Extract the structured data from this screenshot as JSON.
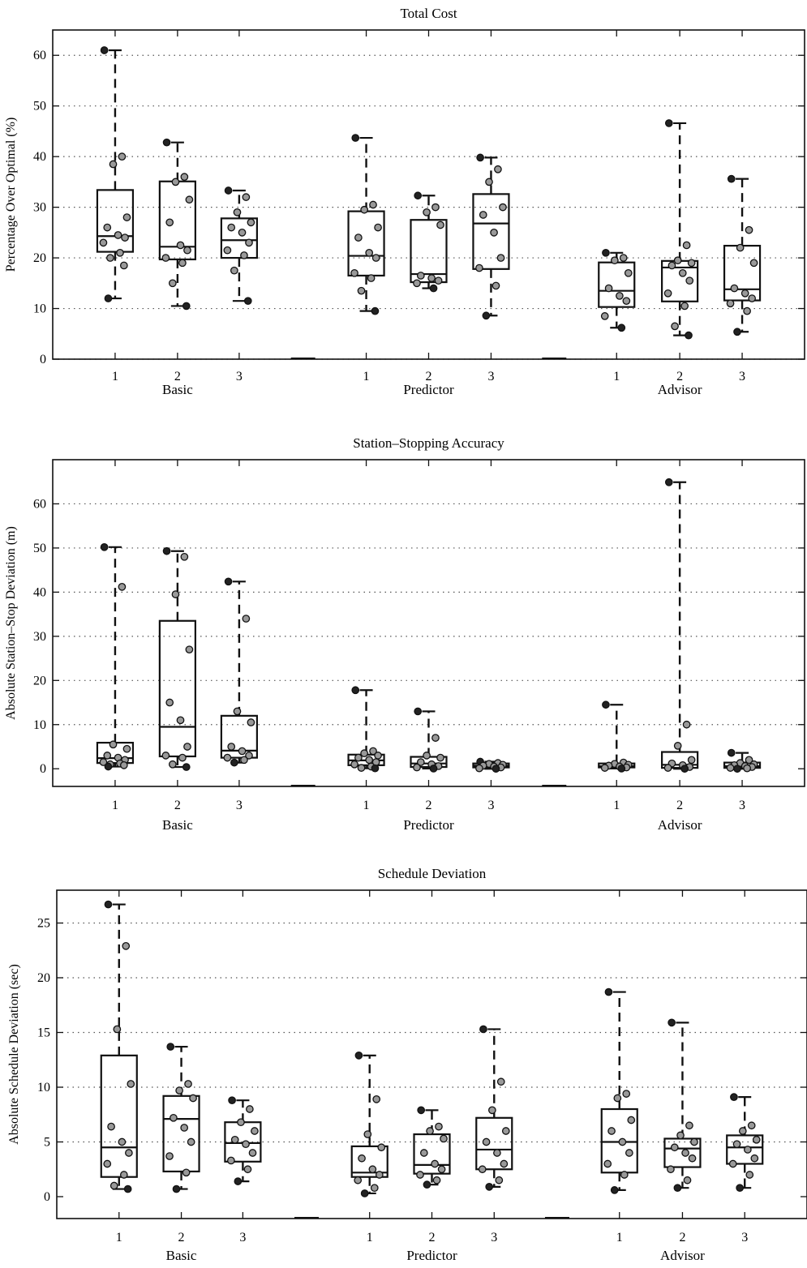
{
  "charts": [
    {
      "type": "box",
      "title": "Total Cost",
      "ylabel": "Percentage Over Optimal (%)",
      "ylim": [
        0,
        65
      ],
      "yticks": [
        0,
        10,
        20,
        30,
        40,
        50,
        60
      ],
      "grid": "horizontal-dotted",
      "groups": [
        {
          "name": "Basic",
          "conditions": [
            {
              "label": "1",
              "whisker_low": 12,
              "q1": 21.2,
              "median": 24.3,
              "q3": 33.4,
              "whisker_high": 61,
              "points": [
                61,
                40,
                38.5,
                28,
                26,
                24.5,
                24,
                23,
                21,
                20,
                18.5,
                12
              ]
            },
            {
              "label": "2",
              "whisker_low": 10.5,
              "q1": 19.7,
              "median": 22.2,
              "q3": 35.1,
              "whisker_high": 42.8,
              "points": [
                42.8,
                36,
                35,
                31.5,
                27,
                22.5,
                21.5,
                20,
                19,
                15,
                10.5
              ]
            },
            {
              "label": "3",
              "whisker_low": 11.5,
              "q1": 20.0,
              "median": 23.5,
              "q3": 27.8,
              "whisker_high": 33.3,
              "points": [
                33.3,
                32,
                29,
                27,
                26,
                25,
                23,
                21.5,
                20.5,
                17.5,
                11.5
              ]
            }
          ]
        },
        {
          "name": "Predictor",
          "conditions": [
            {
              "label": "1",
              "whisker_low": 9.5,
              "q1": 16.5,
              "median": 20.4,
              "q3": 29.2,
              "whisker_high": 43.7,
              "points": [
                43.7,
                30.5,
                29.5,
                26,
                24,
                21,
                20,
                17,
                16,
                13.5,
                9.5
              ]
            },
            {
              "label": "2",
              "whisker_low": 14,
              "q1": 15.2,
              "median": 16.8,
              "q3": 27.5,
              "whisker_high": 32.3,
              "points": [
                32.3,
                30,
                29,
                26.5,
                16.5,
                16,
                15.5,
                15,
                14
              ]
            },
            {
              "label": "3",
              "whisker_low": 8.6,
              "q1": 17.8,
              "median": 26.8,
              "q3": 32.6,
              "whisker_high": 39.8,
              "points": [
                39.8,
                37.5,
                35,
                30,
                28.5,
                25,
                20,
                18,
                14.5,
                8.6
              ]
            }
          ]
        },
        {
          "name": "Advisor",
          "conditions": [
            {
              "label": "1",
              "whisker_low": 6.2,
              "q1": 10.3,
              "median": 13.5,
              "q3": 19.1,
              "whisker_high": 21,
              "points": [
                21,
                20,
                19.5,
                17,
                14,
                12.5,
                11.5,
                8.5,
                6.2
              ]
            },
            {
              "label": "2",
              "whisker_low": 4.7,
              "q1": 11.4,
              "median": 18.1,
              "q3": 19.4,
              "whisker_high": 46.6,
              "points": [
                46.6,
                22.5,
                19.5,
                19,
                18.5,
                17,
                15.5,
                13,
                10.5,
                6.5,
                4.7
              ]
            },
            {
              "label": "3",
              "whisker_low": 5.4,
              "q1": 11.6,
              "median": 13.8,
              "q3": 22.4,
              "whisker_high": 35.6,
              "points": [
                35.6,
                25.5,
                22,
                19,
                14,
                13,
                12,
                11,
                9.5,
                5.4
              ]
            }
          ]
        }
      ]
    },
    {
      "type": "box",
      "title": "Station–Stopping Accuracy",
      "ylabel": "Absolute Station–Stop Deviation (m)",
      "ylim": [
        -4,
        70
      ],
      "yticks": [
        0,
        10,
        20,
        30,
        40,
        50,
        60
      ],
      "grid": "horizontal-dotted",
      "groups": [
        {
          "name": "Basic",
          "conditions": [
            {
              "label": "1",
              "whisker_low": 0.5,
              "q1": 1.3,
              "median": 2.4,
              "q3": 5.9,
              "whisker_high": 50.2,
              "points": [
                50.2,
                41.2,
                5.5,
                4.5,
                3,
                2.5,
                2,
                1.5,
                1.2,
                1,
                0.8,
                0.5
              ]
            },
            {
              "label": "2",
              "whisker_low": 0.4,
              "q1": 2.8,
              "median": 9.5,
              "q3": 33.5,
              "whisker_high": 49.3,
              "points": [
                49.3,
                48,
                39.5,
                27,
                15,
                11,
                5,
                3,
                2.5,
                1,
                0.4
              ]
            },
            {
              "label": "3",
              "whisker_low": 1.4,
              "q1": 2.5,
              "median": 4.1,
              "q3": 12,
              "whisker_high": 42.4,
              "points": [
                42.4,
                34,
                13,
                10.5,
                5,
                4,
                3,
                2.5,
                2,
                1.4
              ]
            }
          ]
        },
        {
          "name": "Predictor",
          "conditions": [
            {
              "label": "1",
              "whisker_low": 0.1,
              "q1": 0.8,
              "median": 1.9,
              "q3": 3.2,
              "whisker_high": 17.8,
              "points": [
                17.8,
                4,
                3.5,
                3,
                2.5,
                2,
                1.5,
                1,
                0.5,
                0.2,
                0.1
              ]
            },
            {
              "label": "2",
              "whisker_low": 0.05,
              "q1": 0.4,
              "median": 1.2,
              "q3": 2.7,
              "whisker_high": 13,
              "points": [
                13,
                7,
                3,
                2.5,
                1.5,
                1,
                0.6,
                0.3,
                0.05
              ]
            },
            {
              "label": "3",
              "whisker_low": 0.0,
              "q1": 0.3,
              "median": 0.7,
              "q3": 1.2,
              "whisker_high": 1.6,
              "points": [
                1.6,
                1.3,
                1.1,
                0.9,
                0.7,
                0.5,
                0.3,
                0.1,
                0.0
              ]
            }
          ]
        },
        {
          "name": "Advisor",
          "conditions": [
            {
              "label": "1",
              "whisker_low": 0.05,
              "q1": 0.3,
              "median": 0.6,
              "q3": 1.2,
              "whisker_high": 14.5,
              "points": [
                14.5,
                1.4,
                1.1,
                0.9,
                0.7,
                0.5,
                0.3,
                0.2,
                0.05
              ]
            },
            {
              "label": "2",
              "whisker_low": 0.0,
              "q1": 0.2,
              "median": 0.9,
              "q3": 3.8,
              "whisker_high": 64.9,
              "points": [
                64.9,
                10,
                5.2,
                2,
                1.2,
                0.8,
                0.4,
                0.2,
                0.0
              ]
            },
            {
              "label": "3",
              "whisker_low": 0.0,
              "q1": 0.2,
              "median": 0.6,
              "q3": 1.4,
              "whisker_high": 3.6,
              "points": [
                3.6,
                2,
                1.3,
                1,
                0.8,
                0.6,
                0.4,
                0.2,
                0.1,
                0.0
              ]
            }
          ]
        }
      ]
    },
    {
      "type": "box",
      "title": "Schedule Deviation",
      "ylabel": "Absolute Schedule Deviation (sec)",
      "ylim": [
        -2,
        28
      ],
      "yticks": [
        0,
        5,
        10,
        15,
        20,
        25
      ],
      "grid": "horizontal-dotted",
      "groups": [
        {
          "name": "Basic",
          "conditions": [
            {
              "label": "1",
              "whisker_low": 0.7,
              "q1": 1.8,
              "median": 4.5,
              "q3": 12.9,
              "whisker_high": 26.7,
              "points": [
                26.7,
                22.9,
                15.3,
                10.3,
                6.4,
                5,
                4,
                3,
                2,
                1,
                0.7
              ]
            },
            {
              "label": "2",
              "whisker_low": 0.7,
              "q1": 2.3,
              "median": 7.1,
              "q3": 9.2,
              "whisker_high": 13.7,
              "points": [
                13.7,
                10.3,
                9.7,
                9,
                7.2,
                6.3,
                5,
                3.7,
                2.2,
                0.7
              ]
            },
            {
              "label": "3",
              "whisker_low": 1.4,
              "q1": 3.2,
              "median": 4.9,
              "q3": 6.8,
              "whisker_high": 8.8,
              "points": [
                8.8,
                8,
                6.8,
                6,
                5.2,
                4.8,
                4,
                3.3,
                2.5,
                1.4
              ]
            }
          ]
        },
        {
          "name": "Predictor",
          "conditions": [
            {
              "label": "1",
              "whisker_low": 0.3,
              "q1": 1.8,
              "median": 2.2,
              "q3": 4.6,
              "whisker_high": 12.9,
              "points": [
                12.9,
                8.9,
                5.7,
                4.5,
                3.5,
                2.5,
                2,
                1.5,
                0.8,
                0.3
              ]
            },
            {
              "label": "2",
              "whisker_low": 1.1,
              "q1": 2.1,
              "median": 2.9,
              "q3": 5.7,
              "whisker_high": 7.9,
              "points": [
                7.9,
                6.4,
                6,
                5.3,
                4,
                3,
                2.5,
                2,
                1.5,
                1.1
              ]
            },
            {
              "label": "3",
              "whisker_low": 0.9,
              "q1": 2.5,
              "median": 4.3,
              "q3": 7.2,
              "whisker_high": 15.3,
              "points": [
                15.3,
                10.5,
                7.9,
                6,
                5,
                4,
                3,
                2.5,
                1.5,
                0.9
              ]
            }
          ]
        },
        {
          "name": "Advisor",
          "conditions": [
            {
              "label": "1",
              "whisker_low": 0.6,
              "q1": 2.2,
              "median": 5,
              "q3": 8,
              "whisker_high": 18.7,
              "points": [
                18.7,
                9.4,
                9,
                7,
                6,
                5,
                4,
                3,
                2,
                0.6
              ]
            },
            {
              "label": "2",
              "whisker_low": 0.8,
              "q1": 2.7,
              "median": 4.4,
              "q3": 5.3,
              "whisker_high": 15.9,
              "points": [
                15.9,
                6.5,
                5.6,
                5,
                4.5,
                4,
                3.5,
                2.5,
                1.5,
                0.8
              ]
            },
            {
              "label": "3",
              "whisker_low": 0.8,
              "q1": 3.0,
              "median": 4.5,
              "q3": 5.6,
              "whisker_high": 9.1,
              "points": [
                9.1,
                6.5,
                6,
                5.2,
                4.8,
                4.3,
                3.5,
                3,
                2,
                0.8
              ]
            }
          ]
        }
      ]
    }
  ]
}
